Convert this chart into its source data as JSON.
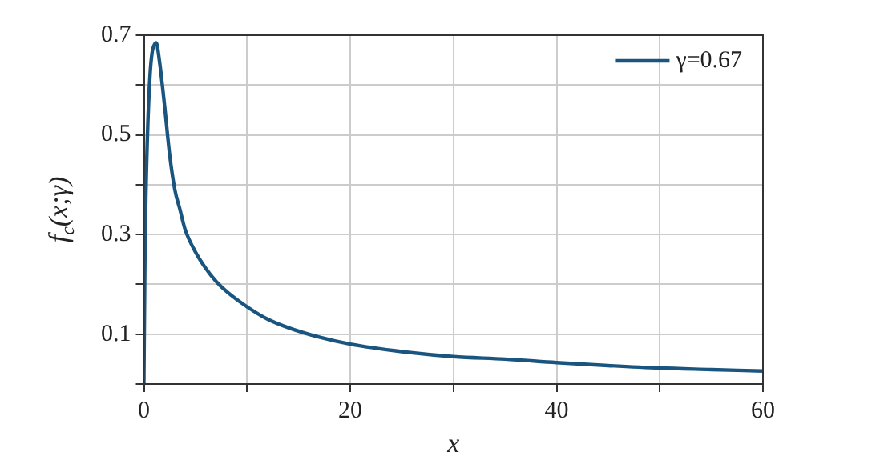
{
  "chart_data": {
    "type": "line",
    "xlabel": "x",
    "ylabel": "f$_{c}$(x;γ)",
    "x": [
      0,
      0.1,
      0.2,
      0.4,
      0.6,
      0.8,
      1,
      1.2,
      1.5,
      2,
      2.5,
      3,
      3.5,
      4,
      5,
      6,
      7,
      8,
      10,
      12,
      14,
      17,
      20,
      25,
      30,
      35,
      40,
      45,
      50,
      55,
      60
    ],
    "series": [
      {
        "name": "γ=0.67",
        "color": "#1a5580",
        "values": [
          0,
          0.25,
          0.38,
          0.53,
          0.62,
          0.665,
          0.68,
          0.685,
          0.65,
          0.56,
          0.46,
          0.39,
          0.35,
          0.31,
          0.265,
          0.232,
          0.206,
          0.186,
          0.155,
          0.13,
          0.113,
          0.094,
          0.08,
          0.065,
          0.055,
          0.05,
          0.043,
          0.037,
          0.032,
          0.029,
          0.026
        ]
      }
    ],
    "xlim": [
      0,
      60
    ],
    "ylim": [
      0,
      0.7
    ],
    "xticks": [
      0,
      {
        "value": 10,
        "label": null
      },
      20,
      {
        "value": 30,
        "label": null
      },
      40,
      {
        "value": 50,
        "label": null
      },
      60
    ],
    "yticks": [
      {
        "value": 0,
        "label": null
      },
      0.1,
      {
        "value": 0.2,
        "label": null
      },
      0.3,
      {
        "value": 0.4,
        "label": null
      },
      0.5,
      {
        "value": 0.6,
        "label": null
      },
      0.7
    ],
    "grid": true,
    "legend": "top right",
    "marker": "none",
    "line_style": "solid"
  }
}
